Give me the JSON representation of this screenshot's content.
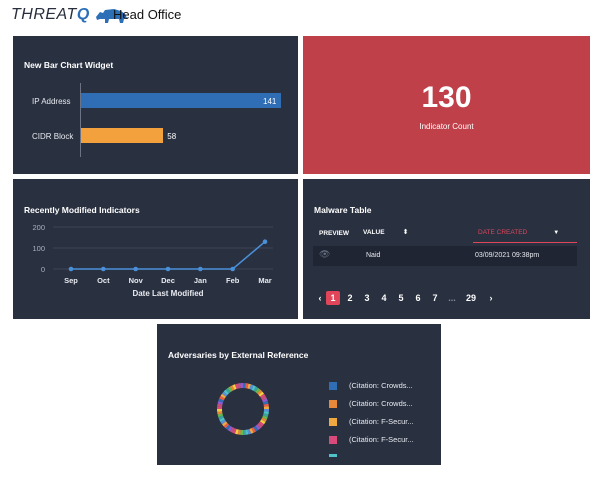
{
  "header": {
    "logo_text_a": "THREAT",
    "logo_text_b": "Q",
    "title": "Head Office"
  },
  "bar_widget": {
    "title": "New Bar Chart Widget",
    "chart_data": {
      "type": "bar",
      "orientation": "horizontal",
      "categories": [
        "IP Address",
        "CIDR Block"
      ],
      "values": [
        141,
        58
      ],
      "colors": [
        "#2f6eb5",
        "#f3a13d"
      ]
    }
  },
  "kpi": {
    "value": "130",
    "label": "Indicator Count",
    "color": "#c0404a"
  },
  "line_widget": {
    "title": "Recently Modified Indicators",
    "chart_data": {
      "type": "line",
      "x": [
        "Sep",
        "Oct",
        "Nov",
        "Dec",
        "Jan",
        "Feb",
        "Mar"
      ],
      "values": [
        0,
        0,
        0,
        0,
        0,
        0,
        130
      ],
      "ylim": [
        0,
        200
      ],
      "yticks": [
        "200",
        "100",
        "0"
      ],
      "xlabel": "Date Last Modified",
      "color": "#4a90d9"
    }
  },
  "malware_table": {
    "title": "Malware Table",
    "columns": {
      "preview": "PREVIEW",
      "value": "VALUE",
      "date": "DATE CREATED"
    },
    "rows": [
      {
        "value": "Naid",
        "date": "03/09/2021 09:38pm"
      }
    ],
    "pagination": {
      "prev": "‹",
      "pages": [
        "1",
        "2",
        "3",
        "4",
        "5",
        "6",
        "7",
        "...",
        "29"
      ],
      "next": "›",
      "active": "1"
    }
  },
  "adversaries": {
    "title": "Adversaries by External Reference",
    "legend": [
      {
        "label": "(Citation: Crowds...",
        "color": "#2f6eb5"
      },
      {
        "label": "(Citation: Crowds...",
        "color": "#e8893a"
      },
      {
        "label": "(Citation: F-Secur...",
        "color": "#f0a940"
      },
      {
        "label": "(Citation: F-Secur...",
        "color": "#d84a7a"
      }
    ]
  }
}
